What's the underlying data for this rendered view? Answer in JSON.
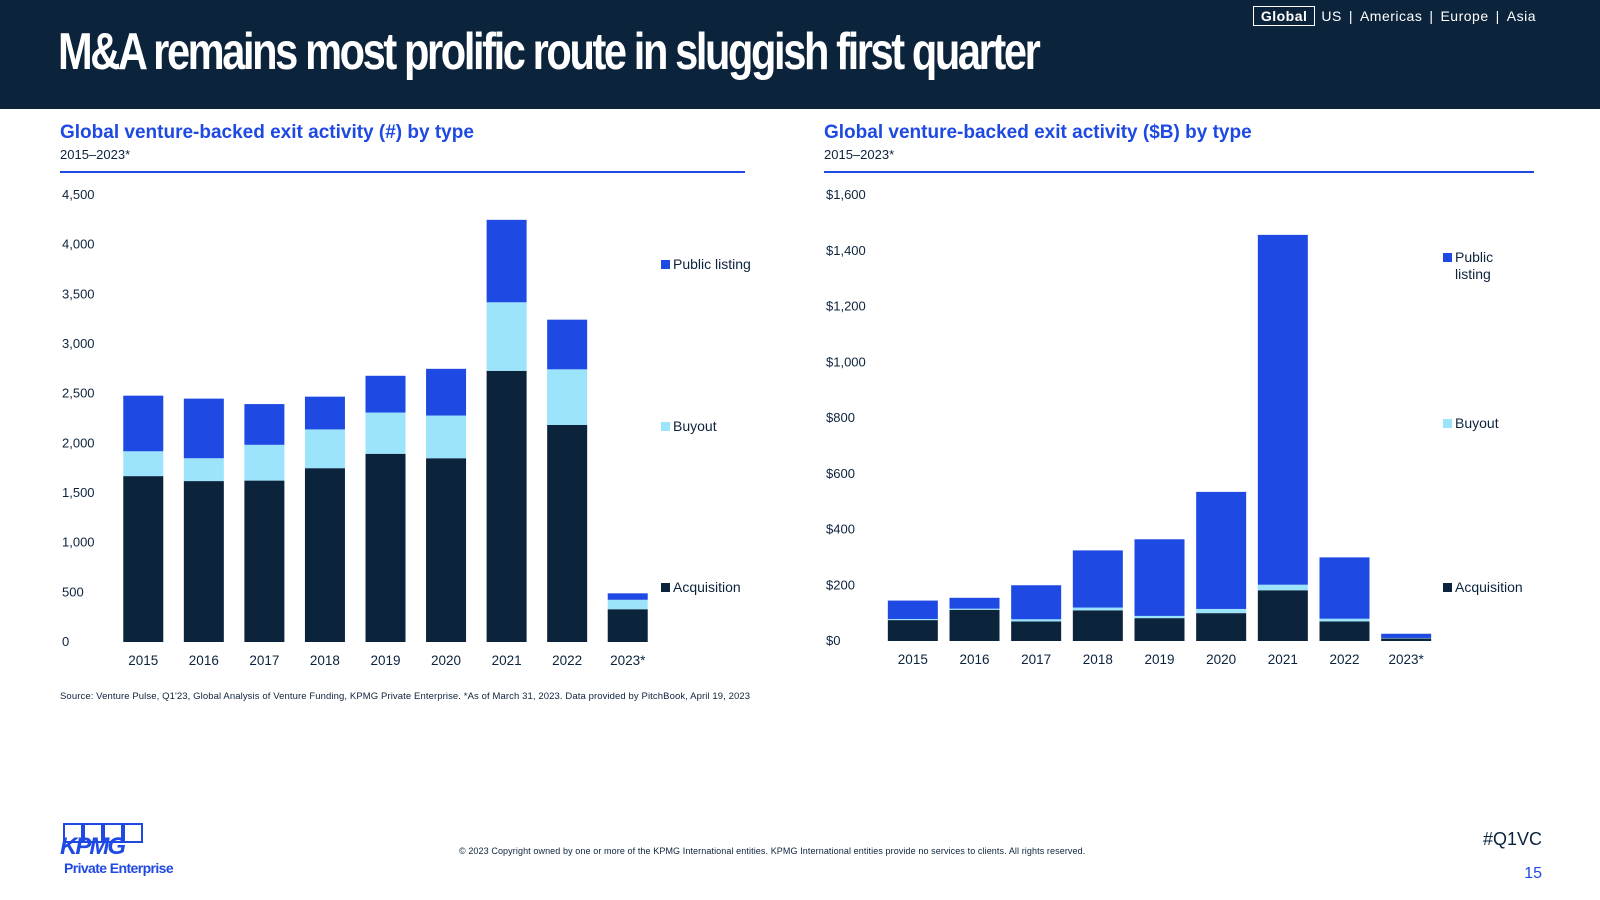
{
  "header": {
    "title": "M&A remains most prolific route in sluggish first quarter",
    "regions": [
      "Global",
      "US",
      "Americas",
      "Europe",
      "Asia"
    ],
    "active_region": "Global"
  },
  "colors": {
    "navy": "#0c233c",
    "public_listing": "#1e49e2",
    "buyout": "#9be4fb",
    "acquisition": "#0c233c"
  },
  "chart_data": [
    {
      "type": "bar",
      "stacked": true,
      "title": "Global venture-backed exit activity (#) by type",
      "subtitle": "2015–2023*",
      "categories": [
        "2015",
        "2016",
        "2017",
        "2018",
        "2019",
        "2020",
        "2021",
        "2022",
        "2023*"
      ],
      "series": [
        {
          "name": "Acquisition",
          "color": "#0c233c",
          "values": [
            1670,
            1620,
            1625,
            1750,
            1895,
            1850,
            2730,
            2185,
            330
          ]
        },
        {
          "name": "Buyout",
          "color": "#9be4fb",
          "values": [
            250,
            230,
            360,
            390,
            415,
            430,
            690,
            560,
            95
          ]
        },
        {
          "name": "Public listing",
          "color": "#1e49e2",
          "values": [
            560,
            600,
            410,
            330,
            370,
            470,
            830,
            500,
            65
          ]
        }
      ],
      "ylim": [
        0,
        4500
      ],
      "yticks": [
        "0",
        "500",
        "1,000",
        "1,500",
        "2,000",
        "2,500",
        "3,000",
        "3,500",
        "4,000",
        "4,500"
      ],
      "legend": [
        "Public listing",
        "Buyout",
        "Acquisition"
      ],
      "legend_position": "right"
    },
    {
      "type": "bar",
      "stacked": true,
      "title": "Global venture-backed exit activity ($B) by type",
      "subtitle": "2015–2023*",
      "categories": [
        "2015",
        "2016",
        "2017",
        "2018",
        "2019",
        "2020",
        "2021",
        "2022",
        "2023*"
      ],
      "series": [
        {
          "name": "Acquisition",
          "color": "#0c233c",
          "values": [
            75,
            112,
            70,
            110,
            82,
            100,
            182,
            70,
            9
          ]
        },
        {
          "name": "Buyout",
          "color": "#9be4fb",
          "values": [
            4,
            4,
            8,
            10,
            8,
            15,
            20,
            10,
            2
          ]
        },
        {
          "name": "Public listing",
          "color": "#1e49e2",
          "values": [
            66,
            39,
            122,
            205,
            275,
            420,
            1255,
            220,
            15
          ]
        }
      ],
      "ylim": [
        0,
        1600
      ],
      "yticks": [
        "$0",
        "$200",
        "$400",
        "$600",
        "$800",
        "$1,000",
        "$1,200",
        "$1,400",
        "$1,600"
      ],
      "legend": [
        "Public listing",
        "Buyout",
        "Acquisition"
      ],
      "legend_position": "right"
    }
  ],
  "source": "Source: Venture Pulse, Q1'23, Global Analysis of Venture Funding, KPMG Private Enterprise. *As of March 31, 2023. Data provided by PitchBook, April 19, 2023",
  "footer": {
    "copyright": "© 2023 Copyright owned by one or more of the KPMG International entities. KPMG International entities provide no services to clients. All rights reserved.",
    "hashtag": "#Q1VC",
    "page_number": "15",
    "logo_text": "KPMG",
    "logo_subtext": "Private Enterprise"
  }
}
